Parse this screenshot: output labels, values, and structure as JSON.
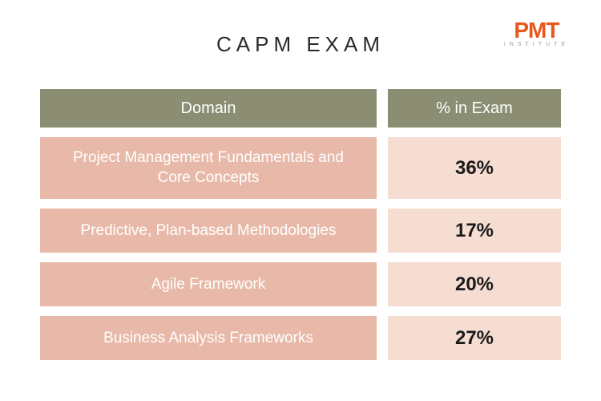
{
  "logo": {
    "main": "PMT",
    "sub": "INSTITUTE"
  },
  "title": "CAPM EXAM",
  "table": {
    "type": "table",
    "header": {
      "domain_label": "Domain",
      "percent_label": "% in Exam",
      "bg_color": "#8b8e73",
      "text_color": "#ffffff",
      "fontsize": 20
    },
    "rows": [
      {
        "domain": "Project Management Fundamentals and Core Concepts",
        "percent": "36%"
      },
      {
        "domain": "Predictive, Plan-based Methodologies",
        "percent": "17%"
      },
      {
        "domain": "Agile Framework",
        "percent": "20%"
      },
      {
        "domain": "Business Analysis Frameworks",
        "percent": "27%"
      }
    ],
    "domain_cell": {
      "bg_color": "#e8b9a8",
      "text_color": "#ffffff",
      "fontsize": 19
    },
    "percent_cell": {
      "bg_color": "#f6ddd2",
      "text_color": "#1a1a1a",
      "fontsize": 24,
      "fontweight": 700
    },
    "row_gap": 12,
    "col_gap": 14,
    "domain_width": 420
  },
  "colors": {
    "background": "#ffffff",
    "title_color": "#2a2a2a",
    "logo_color": "#e8571c"
  },
  "title_fontsize": 26,
  "title_letterspacing": 6
}
